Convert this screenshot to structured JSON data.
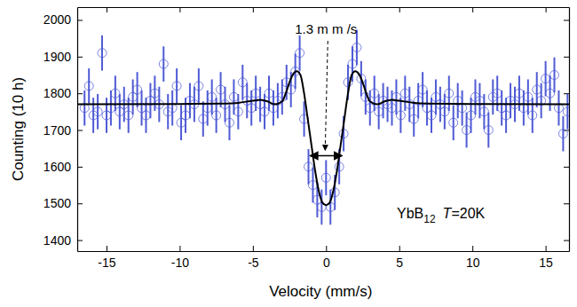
{
  "chart_data": {
    "type": "scatter",
    "x_label": "Velocity (mm/s)",
    "y_label": "Counting (10 h)",
    "xlim": [
      -17,
      16.6
    ],
    "ylim": [
      1370,
      2035
    ],
    "xticks": [
      -15,
      -10,
      -5,
      0,
      5,
      10,
      15
    ],
    "yticks": [
      1400,
      1500,
      1600,
      1700,
      1800,
      1900,
      2000
    ],
    "grid": false,
    "annotation": {
      "text": "1.3 m m /s",
      "arrow_x": [
        -1.1,
        1.1
      ],
      "arrow_y": 1630
    },
    "sample_label": [
      {
        "text": "YbB",
        "format": "normal"
      },
      {
        "text": "12",
        "format": "sub"
      },
      {
        "text": "T",
        "format": "italic"
      },
      {
        "text": "=20K",
        "format": "normal"
      }
    ],
    "series": [
      {
        "type": "scatter",
        "marker": "circle",
        "color": "#4f5bd5",
        "error": 48,
        "x": [
          -16.5,
          -16.2,
          -15.9,
          -15.6,
          -15.3,
          -15.0,
          -14.7,
          -14.4,
          -14.1,
          -13.8,
          -13.5,
          -13.2,
          -12.9,
          -12.6,
          -12.3,
          -12.0,
          -11.7,
          -11.4,
          -11.1,
          -10.8,
          -10.5,
          -10.2,
          -9.9,
          -9.6,
          -9.3,
          -9.0,
          -8.7,
          -8.4,
          -8.1,
          -7.8,
          -7.5,
          -7.2,
          -6.9,
          -6.6,
          -6.3,
          -6.0,
          -5.7,
          -5.4,
          -5.1,
          -4.8,
          -4.5,
          -4.2,
          -3.9,
          -3.6,
          -3.3,
          -3.0,
          -2.7,
          -2.4,
          -2.1,
          -1.8,
          -1.5,
          -1.2,
          -0.9,
          -0.6,
          -0.3,
          0,
          0.3,
          0.6,
          0.9,
          1.2,
          1.5,
          1.8,
          2.1,
          2.4,
          2.7,
          3.0,
          3.3,
          3.6,
          3.9,
          4.2,
          4.5,
          4.8,
          5.1,
          5.4,
          5.7,
          6.0,
          6.3,
          6.6,
          6.9,
          7.2,
          7.5,
          7.8,
          8.1,
          8.4,
          8.7,
          9.0,
          9.3,
          9.6,
          9.9,
          10.2,
          10.5,
          10.8,
          11.1,
          11.4,
          11.7,
          12.0,
          12.3,
          12.6,
          12.9,
          13.2,
          13.5,
          13.8,
          14.1,
          14.4,
          14.7,
          15.0,
          15.3,
          15.6,
          15.9,
          16.2,
          16.5
        ],
        "values": [
          1760,
          1820,
          1740,
          1750,
          1910,
          1740,
          1760,
          1800,
          1750,
          1770,
          1740,
          1790,
          1810,
          1760,
          1740,
          1780,
          1800,
          1770,
          1880,
          1750,
          1760,
          1820,
          1720,
          1740,
          1780,
          1770,
          1820,
          1730,
          1760,
          1790,
          1740,
          1810,
          1770,
          1720,
          1790,
          1750,
          1830,
          1780,
          1760,
          1800,
          1770,
          1750,
          1800,
          1760,
          1780,
          1790,
          1830,
          1810,
          1860,
          1910,
          1730,
          1600,
          1550,
          1510,
          1490,
          1570,
          1490,
          1530,
          1600,
          1690,
          1830,
          1880,
          1925,
          1840,
          1790,
          1760,
          1800,
          1750,
          1780,
          1770,
          1760,
          1790,
          1740,
          1800,
          1770,
          1730,
          1780,
          1810,
          1760,
          1740,
          1790,
          1770,
          1750,
          1800,
          1720,
          1780,
          1760,
          1700,
          1740,
          1790,
          1780,
          1750,
          1700,
          1790,
          1800,
          1760,
          1740,
          1780,
          1770,
          1800,
          1760,
          1790,
          1740,
          1810,
          1780,
          1840,
          1800,
          1850,
          1760,
          1690,
          1750
        ]
      },
      {
        "type": "line",
        "line_style": "solid",
        "color": "#000000",
        "x": [
          -17,
          -10,
          -7,
          -6,
          -5,
          -4.5,
          -4,
          -3.5,
          -3,
          -2.75,
          -2.5,
          -2.25,
          -2,
          -1.75,
          -1.5,
          -1.25,
          -1,
          -0.75,
          -0.5,
          -0.25,
          0,
          0.25,
          0.5,
          0.75,
          1,
          1.25,
          1.5,
          1.75,
          2,
          2.25,
          2.5,
          2.75,
          3,
          3.5,
          4,
          4.5,
          5,
          6,
          7,
          10,
          16.6
        ],
        "values": [
          1770,
          1771,
          1772,
          1774,
          1780,
          1782,
          1778,
          1770,
          1778,
          1800,
          1830,
          1852,
          1860,
          1850,
          1800,
          1730,
          1660,
          1590,
          1535,
          1502,
          1495,
          1502,
          1535,
          1590,
          1660,
          1730,
          1800,
          1850,
          1860,
          1852,
          1830,
          1800,
          1778,
          1770,
          1778,
          1782,
          1780,
          1774,
          1772,
          1771,
          1770
        ]
      }
    ]
  }
}
